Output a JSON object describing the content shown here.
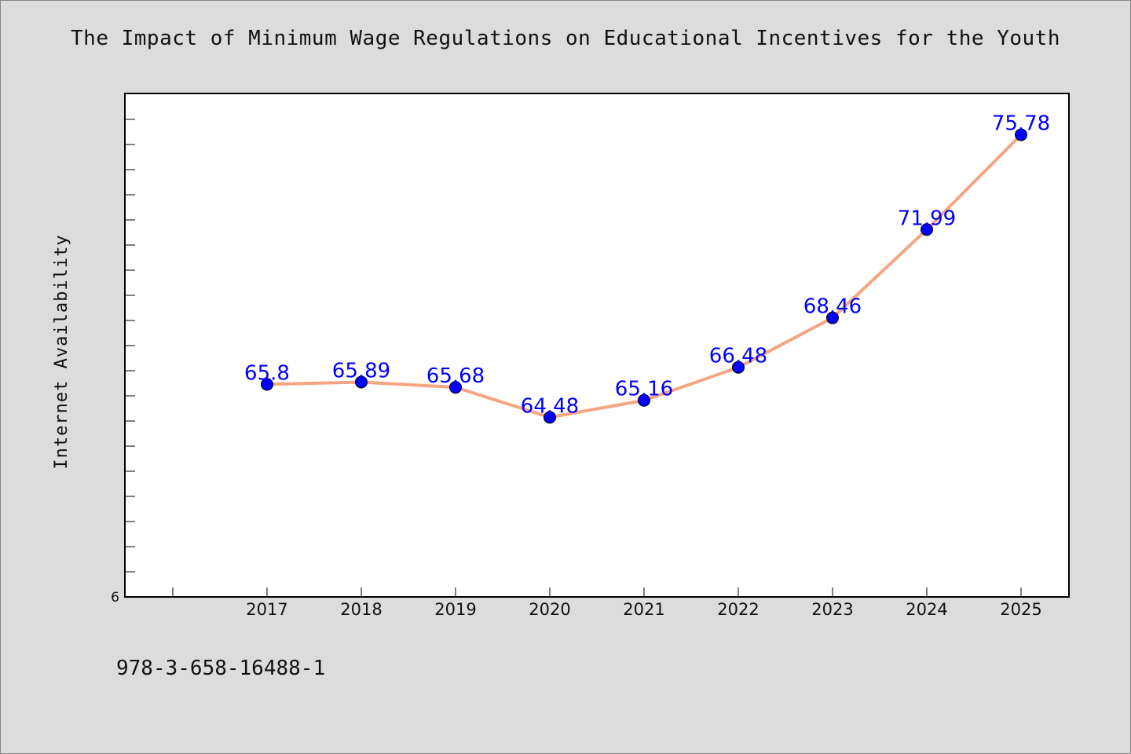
{
  "chart_data": {
    "type": "line",
    "title": "The Impact of Minimum Wage Regulations on Educational Incentives for the Youth",
    "ylabel": "Internet Availability",
    "xlabel": "",
    "categories": [
      "2017",
      "2018",
      "2019",
      "2020",
      "2021",
      "2022",
      "2023",
      "2024",
      "2025"
    ],
    "series": [
      {
        "values": [
          65.8,
          65.89,
          65.68,
          64.48,
          65.16,
          66.48,
          68.46,
          71.99,
          75.78
        ],
        "labels": [
          "65.8",
          "65.89",
          "65.68",
          "64.48",
          "65.16",
          "66.48",
          "68.46",
          "71.99",
          "75.78"
        ],
        "line_color": "#f4a582",
        "marker_color": "#0000ff"
      }
    ],
    "ylim": [
      57.3,
      77.4
    ],
    "y_tick_label": "6",
    "grid": false,
    "legend": "none"
  },
  "footer": {
    "code": "978-3-658-16488-1"
  },
  "colors": {
    "background": "#dcdcdc",
    "plot_background": "#ffffff",
    "label_color": "#0000ff"
  }
}
